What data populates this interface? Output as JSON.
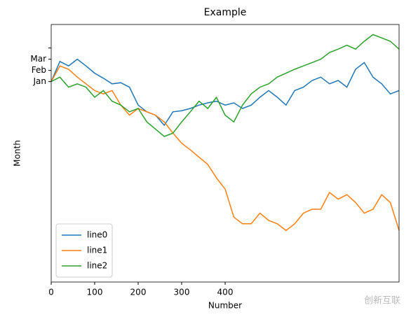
{
  "chart_data": {
    "type": "line",
    "title": "Example",
    "x_label": "Number",
    "y_label": "Month",
    "x": [
      0,
      20,
      40,
      60,
      80,
      100,
      120,
      140,
      160,
      180,
      200,
      220,
      240,
      260,
      280,
      300,
      320,
      340,
      360,
      380,
      400,
      420,
      440,
      460,
      480,
      500,
      520,
      540,
      560,
      580,
      600,
      620,
      640,
      660,
      680,
      700,
      720,
      740,
      760,
      780,
      800
    ],
    "series": [
      {
        "name": "line0",
        "color": "#1f77b4",
        "values": [
          0,
          1.8,
          1.4,
          2.0,
          1.4,
          0.75,
          0.3,
          -0.2,
          -0.1,
          -0.5,
          -2.1,
          -2.7,
          -3.0,
          -3.9,
          -2.7,
          -2.6,
          -2.4,
          -2.1,
          -1.9,
          -1.75,
          -2.1,
          -1.9,
          -2.4,
          -2.1,
          -1.4,
          -0.8,
          -1.4,
          -2.1,
          -0.8,
          -0.5,
          0.1,
          0.4,
          -0.2,
          0.1,
          -0.5,
          1.1,
          1.7,
          0.4,
          -0.2,
          -1.1,
          -0.8
        ]
      },
      {
        "name": "line1",
        "color": "#ff7f0e",
        "values": [
          0,
          1.4,
          1.1,
          0.4,
          -0.2,
          -0.8,
          -1.1,
          -0.8,
          -2.1,
          -3.0,
          -2.4,
          -2.7,
          -3.0,
          -3.6,
          -4.6,
          -5.5,
          -6.1,
          -6.75,
          -7.4,
          -8.6,
          -9.6,
          -12.1,
          -12.7,
          -12.7,
          -11.75,
          -12.4,
          -12.7,
          -13.3,
          -12.7,
          -11.75,
          -11.4,
          -11.4,
          -9.9,
          -10.5,
          -10.1,
          -10.8,
          -11.75,
          -11.4,
          -10.1,
          -10.8,
          -13.3
        ]
      },
      {
        "name": "line2",
        "color": "#2ca02c",
        "values": [
          0,
          0.4,
          -0.5,
          -0.2,
          -0.5,
          -1.4,
          -0.8,
          -1.75,
          -2.1,
          -2.7,
          -2.4,
          -3.6,
          -4.25,
          -4.9,
          -4.6,
          -3.6,
          -2.7,
          -1.75,
          -2.4,
          -1.4,
          -3.0,
          -3.6,
          -2.1,
          -1.1,
          -0.5,
          -0.2,
          0.4,
          0.75,
          1.1,
          1.4,
          1.7,
          2.0,
          2.6,
          2.9,
          3.25,
          2.9,
          3.6,
          4.2,
          3.9,
          3.6,
          2.9
        ]
      }
    ],
    "xlim": [
      0,
      800
    ],
    "xticks": [
      0,
      100,
      200,
      300,
      400
    ],
    "ylim": [
      -17.9,
      5.1
    ],
    "yticks": [
      {
        "value": 0,
        "label": "Jan"
      },
      {
        "value": 1,
        "label": "Feb"
      },
      {
        "value": 2,
        "label": "Mar"
      },
      {
        "value": 3,
        "label": null
      }
    ],
    "grid": false,
    "legend": "lower left"
  },
  "watermark": "创新互联"
}
